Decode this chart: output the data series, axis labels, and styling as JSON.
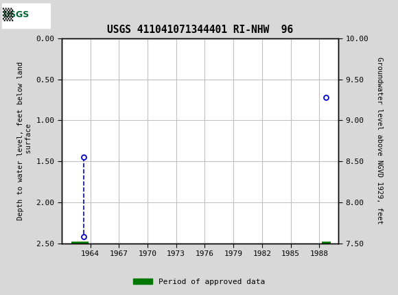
{
  "title": "USGS 411041071344401 RI-NHW  96",
  "ylabel_left": "Depth to water level, feet below land\n surface",
  "ylabel_right": "Groundwater level above NGVD 1929, feet",
  "ylim_left": [
    0.0,
    2.5
  ],
  "ylim_right": [
    10.0,
    7.5
  ],
  "xlim": [
    1961.0,
    1990.0
  ],
  "yticks_left": [
    0.0,
    0.5,
    1.0,
    1.5,
    2.0,
    2.5
  ],
  "yticks_right": [
    10.0,
    9.5,
    9.0,
    8.5,
    8.0,
    7.5
  ],
  "xticks": [
    1964,
    1967,
    1970,
    1973,
    1976,
    1979,
    1982,
    1985,
    1988
  ],
  "data_points_x": [
    1963.3,
    1963.3,
    1988.7
  ],
  "data_points_y": [
    1.45,
    2.42,
    0.72
  ],
  "dashed_line_x": [
    1963.3,
    1963.3
  ],
  "dashed_line_y": [
    1.45,
    2.42
  ],
  "approved_bars": [
    {
      "x_start": 1962.0,
      "x_end": 1963.8,
      "y": 2.5
    },
    {
      "x_start": 1988.3,
      "x_end": 1989.2,
      "y": 2.5
    }
  ],
  "point_color": "#0000CC",
  "dashed_color": "#0000CC",
  "approved_color": "#007700",
  "header_color": "#006633",
  "background_color": "#d8d8d8",
  "plot_bg_color": "#ffffff",
  "grid_color": "#c0c0c0",
  "legend_label": "Period of approved data",
  "font_family": "monospace",
  "header_text": "USGS",
  "fig_width": 5.8,
  "fig_height": 4.3,
  "dpi": 100
}
